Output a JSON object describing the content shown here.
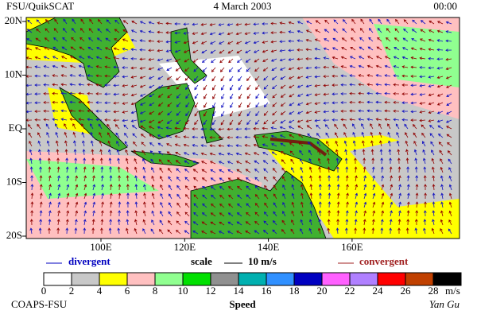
{
  "header": {
    "left": "FSU/QuikSCAT",
    "date": "4 March 2003",
    "time": "00:00"
  },
  "lat_labels": [
    "20N",
    "10N",
    "EQ",
    "10S",
    "20S"
  ],
  "lon_labels": [
    "100E",
    "120E",
    "140E",
    "160E"
  ],
  "legend": {
    "divergent": "divergent",
    "scale": "scale",
    "scale_value": "10 m/s",
    "convergent": "convergent"
  },
  "colorbar": {
    "colors": [
      "#ffffff",
      "#c8c8c8",
      "#ffff00",
      "#ffc0c0",
      "#90ff90",
      "#00e000",
      "#909090",
      "#00b0b0",
      "#3090ff",
      "#0000c0",
      "#ff60ff",
      "#b080ff",
      "#ff0000",
      "#c04000",
      "#000000"
    ],
    "ticks": [
      "0",
      "2",
      "4",
      "6",
      "8",
      "10",
      "12",
      "14",
      "16",
      "18",
      "20",
      "22",
      "24",
      "26",
      "28"
    ],
    "unit": "m/s",
    "title": "Speed"
  },
  "footer": {
    "left": "COAPS-FSU",
    "right": "Yan Gu"
  }
}
